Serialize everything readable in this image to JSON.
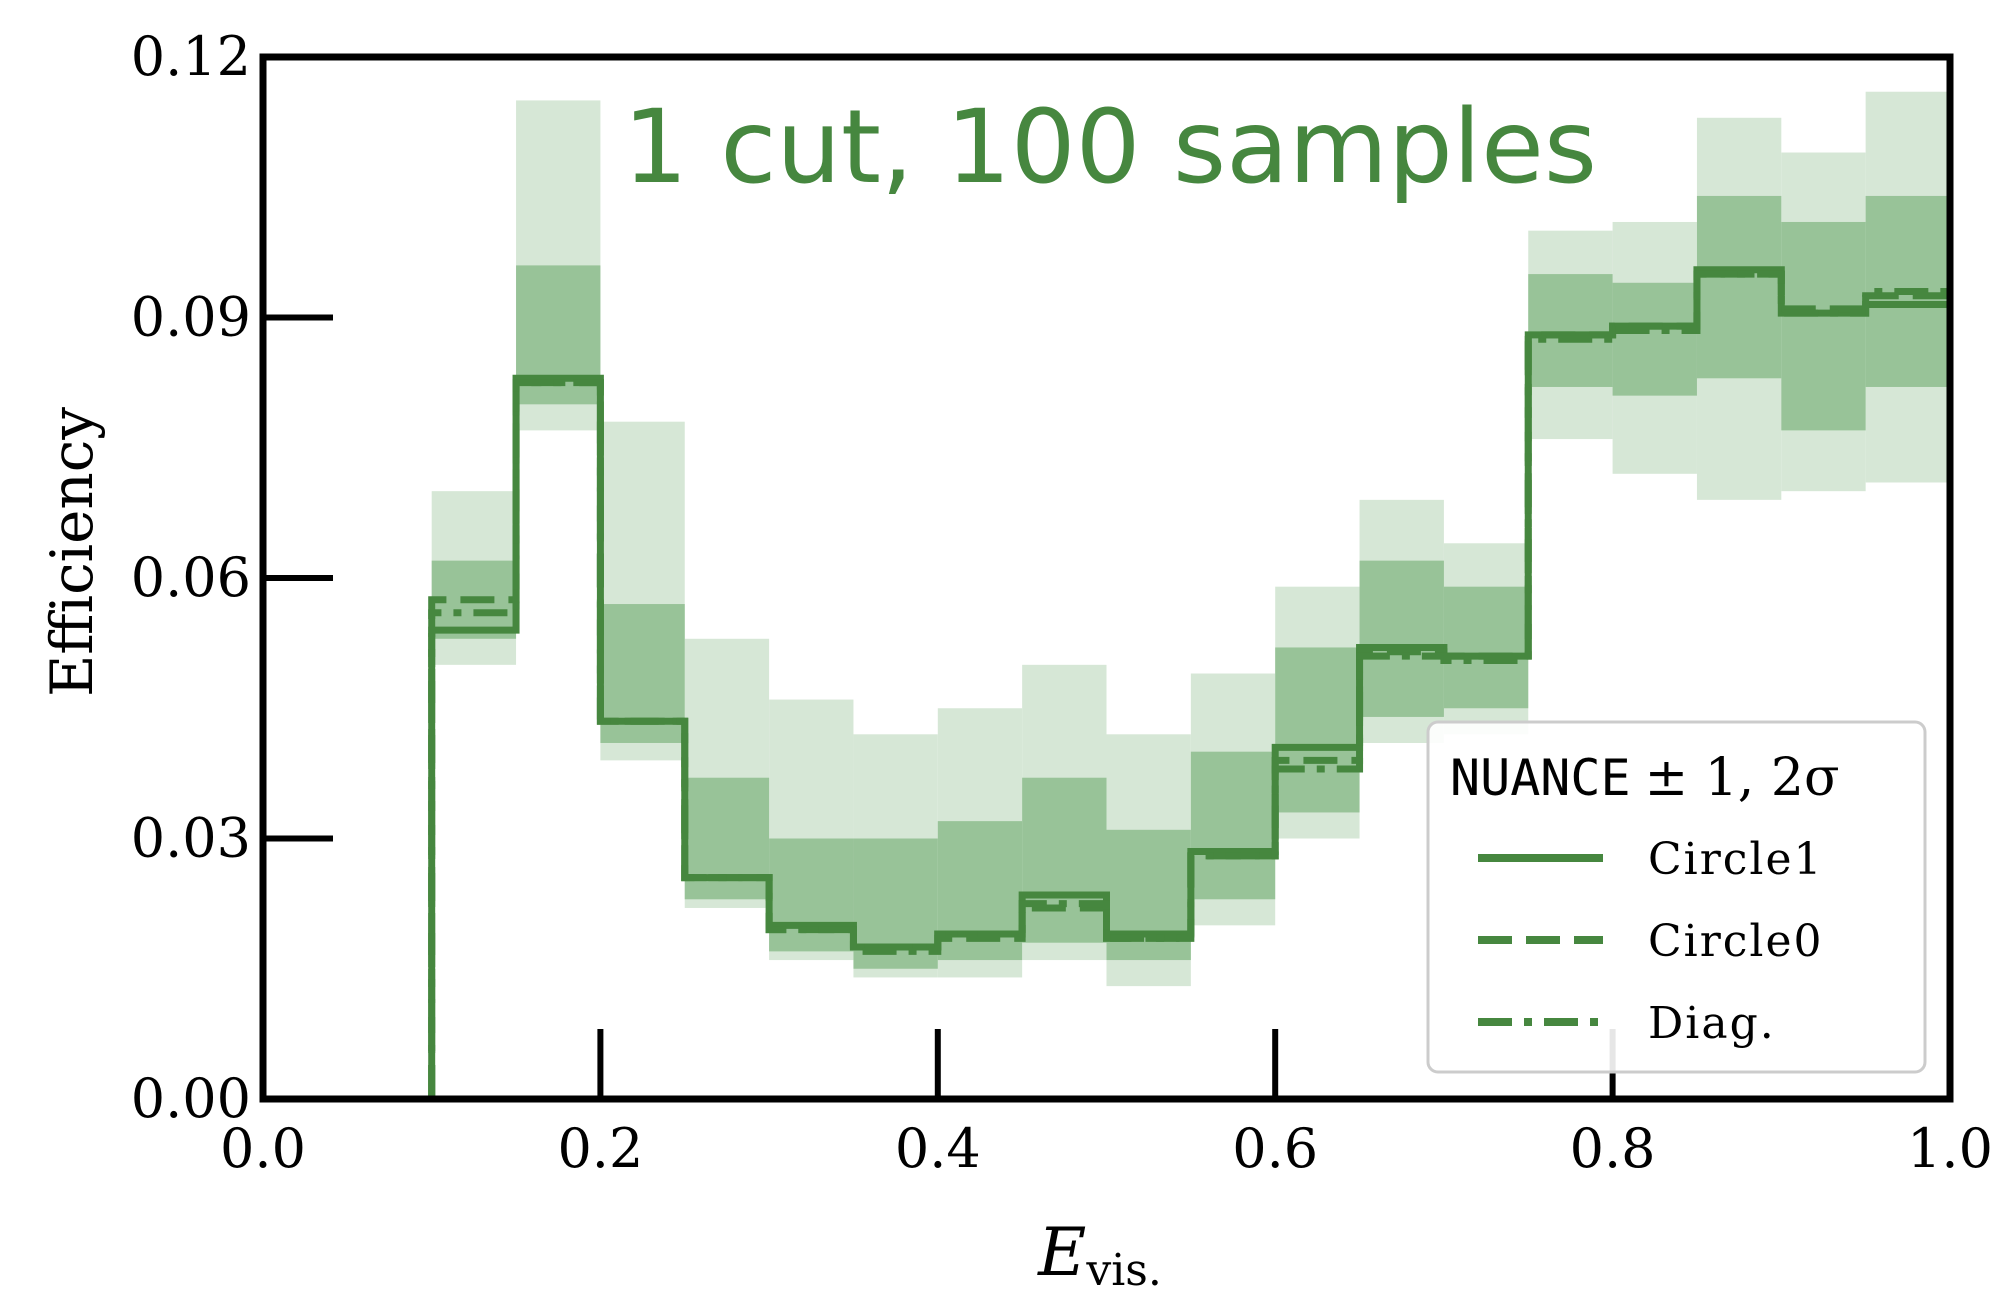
{
  "colors": {
    "main": "#46873f",
    "band_2sigma": "#d6e7d6",
    "band_1sigma": "#98c398"
  },
  "chart_data": {
    "type": "step",
    "annotation": "1 cut, 100 samples",
    "xlabel": "E",
    "xlabel_subscript": "vis.",
    "ylabel": "Efficiency",
    "xlim": [
      0.0,
      1.0
    ],
    "ylim": [
      0.0,
      0.12
    ],
    "xticks": [
      "0.0",
      "0.2",
      "0.4",
      "0.6",
      "0.8",
      "1.0"
    ],
    "yticks": [
      "0.00",
      "0.03",
      "0.06",
      "0.09",
      "0.12"
    ],
    "grid": false,
    "legend": {
      "title": "NUANCE",
      "title_suffix": "± 1, 2σ",
      "placement": "lower-right",
      "entries": [
        {
          "label": "Circle1",
          "style": "solid"
        },
        {
          "label": "Circle0",
          "style": "dashed"
        },
        {
          "label": "Diag.",
          "style": "dashdot"
        }
      ]
    },
    "bin_edges": [
      0.1,
      0.15,
      0.2,
      0.25,
      0.3,
      0.35,
      0.4,
      0.45,
      0.5,
      0.55,
      0.6,
      0.65,
      0.7,
      0.75,
      0.8,
      0.85,
      0.9,
      0.95,
      1.0
    ],
    "bands": {
      "sigma2_low": [
        0.05,
        0.077,
        0.039,
        0.022,
        0.016,
        0.014,
        0.014,
        0.016,
        0.013,
        0.02,
        0.03,
        0.041,
        0.042,
        0.076,
        0.072,
        0.069,
        0.07,
        0.071
      ],
      "sigma2_high": [
        0.07,
        0.115,
        0.078,
        0.053,
        0.046,
        0.042,
        0.045,
        0.05,
        0.042,
        0.049,
        0.059,
        0.069,
        0.064,
        0.1,
        0.101,
        0.113,
        0.109,
        0.116
      ],
      "sigma1_low": [
        0.053,
        0.08,
        0.041,
        0.023,
        0.017,
        0.015,
        0.016,
        0.018,
        0.016,
        0.023,
        0.033,
        0.044,
        0.045,
        0.082,
        0.081,
        0.083,
        0.077,
        0.082
      ],
      "sigma1_high": [
        0.062,
        0.096,
        0.057,
        0.037,
        0.03,
        0.03,
        0.032,
        0.037,
        0.031,
        0.04,
        0.052,
        0.062,
        0.059,
        0.095,
        0.094,
        0.104,
        0.101,
        0.104
      ]
    },
    "series": [
      {
        "name": "Circle1",
        "style": "solid",
        "values": [
          0.054,
          0.083,
          0.0435,
          0.0255,
          0.02,
          0.0175,
          0.019,
          0.0235,
          0.019,
          0.0285,
          0.0405,
          0.052,
          0.051,
          0.088,
          0.089,
          0.0955,
          0.0905,
          0.0915
        ]
      },
      {
        "name": "Circle0",
        "style": "dashed",
        "values": [
          0.0575,
          0.0825,
          0.0435,
          0.0255,
          0.0195,
          0.0175,
          0.0185,
          0.022,
          0.0185,
          0.028,
          0.039,
          0.0515,
          0.051,
          0.088,
          0.089,
          0.095,
          0.091,
          0.0925
        ]
      },
      {
        "name": "Diag.",
        "style": "dashdot",
        "values": [
          0.056,
          0.0825,
          0.0435,
          0.0255,
          0.0195,
          0.017,
          0.019,
          0.0225,
          0.0185,
          0.028,
          0.038,
          0.051,
          0.0505,
          0.0875,
          0.0885,
          0.095,
          0.0905,
          0.093
        ]
      }
    ]
  }
}
